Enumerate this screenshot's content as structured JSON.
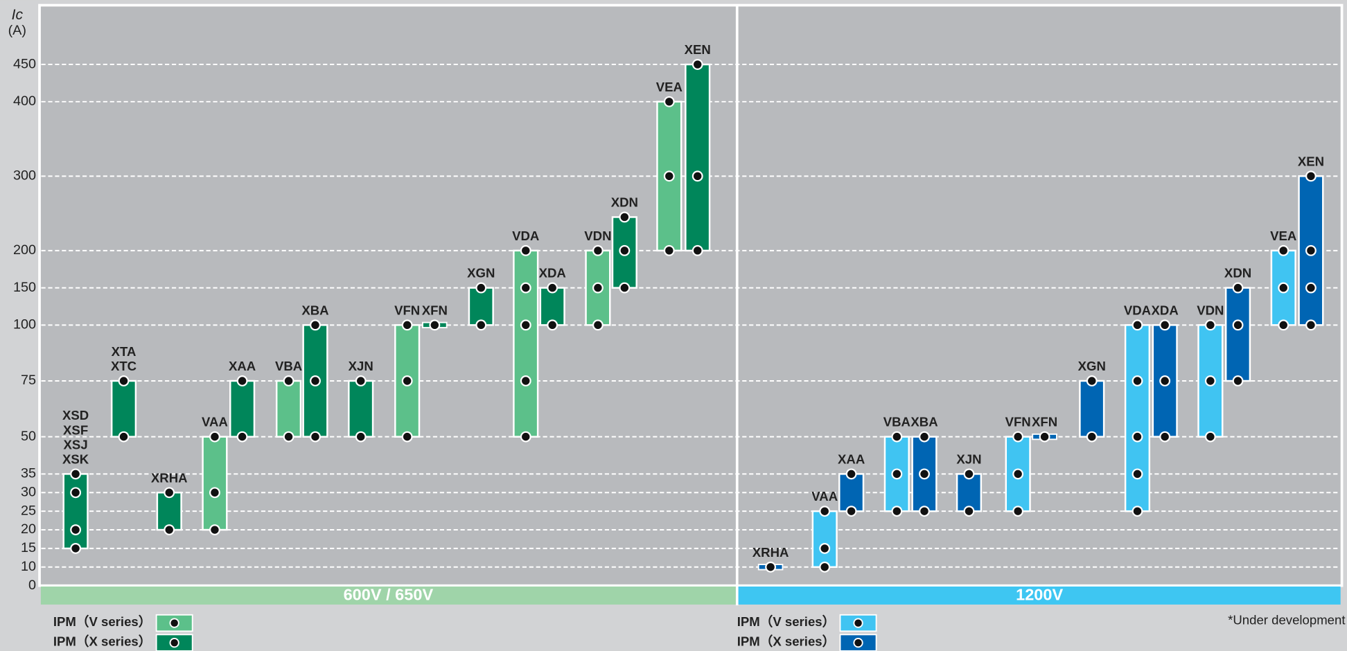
{
  "chart_data": {
    "type": "range",
    "y_label": "Ic",
    "y_unit": "(A)",
    "ylim": [
      0,
      450
    ],
    "yticks": [
      0,
      10,
      15,
      20,
      25,
      30,
      35,
      50,
      75,
      100,
      150,
      200,
      300,
      400,
      450
    ],
    "grid": true,
    "note": "*Under development",
    "groups": [
      {
        "label": "600V / 650V",
        "color": "#9fd4a9",
        "series": [
          {
            "name": "IPM（V series）",
            "color": "#5cc08a",
            "products": [
              {
                "names": [
                  "VAA"
                ],
                "values": [
                  20,
                  30,
                  50
                ]
              },
              {
                "names": [
                  "VBA"
                ],
                "values": [
                  50,
                  75
                ]
              },
              {
                "names": [
                  "VFN"
                ],
                "values": [
                  50,
                  75,
                  100
                ]
              },
              {
                "names": [
                  "VDA"
                ],
                "values": [
                  50,
                  75,
                  100,
                  150,
                  200
                ]
              },
              {
                "names": [
                  "VDN"
                ],
                "values": [
                  100,
                  150,
                  200
                ]
              },
              {
                "names": [
                  "VEA"
                ],
                "values": [
                  200,
                  300,
                  400
                ]
              }
            ]
          },
          {
            "name": "IPM（X series）",
            "color": "#00865a",
            "products": [
              {
                "names": [
                  "XSD",
                  "XSF",
                  "XSJ",
                  "XSK"
                ],
                "values": [
                  15,
                  20,
                  30,
                  35
                ]
              },
              {
                "names": [
                  "XTA",
                  "XTC"
                ],
                "values": [
                  50,
                  75
                ]
              },
              {
                "names": [
                  "XRHA"
                ],
                "values": [
                  20,
                  30
                ]
              },
              {
                "names": [
                  "XAA"
                ],
                "values": [
                  50,
                  75
                ]
              },
              {
                "names": [
                  "XBA"
                ],
                "values": [
                  50,
                  75,
                  100
                ]
              },
              {
                "names": [
                  "XJN"
                ],
                "values": [
                  50,
                  75
                ]
              },
              {
                "names": [
                  "XFN"
                ],
                "values": [
                  100
                ]
              },
              {
                "names": [
                  "XGN"
                ],
                "values": [
                  100,
                  150
                ]
              },
              {
                "names": [
                  "XDA"
                ],
                "values": [
                  100,
                  150
                ]
              },
              {
                "names": [
                  "XDN"
                ],
                "values": [
                  150,
                  200,
                  245
                ]
              },
              {
                "names": [
                  "XEN"
                ],
                "values": [
                  200,
                  300,
                  450
                ]
              }
            ]
          }
        ]
      },
      {
        "label": "1200V",
        "color": "#3ec6f2",
        "series": [
          {
            "name": "IPM（V series）",
            "color": "#40c4f2",
            "products": [
              {
                "names": [
                  "VAA"
                ],
                "values": [
                  10,
                  15,
                  25
                ]
              },
              {
                "names": [
                  "VBA"
                ],
                "values": [
                  25,
                  35,
                  50
                ]
              },
              {
                "names": [
                  "VFN"
                ],
                "values": [
                  25,
                  35,
                  50
                ]
              },
              {
                "names": [
                  "VDA"
                ],
                "values": [
                  25,
                  35,
                  50,
                  75,
                  100
                ]
              },
              {
                "names": [
                  "VDN"
                ],
                "values": [
                  50,
                  75,
                  100
                ]
              },
              {
                "names": [
                  "VEA"
                ],
                "values": [
                  100,
                  150,
                  200
                ]
              }
            ]
          },
          {
            "name": "IPM（X series）",
            "color": "#0065b3",
            "products": [
              {
                "names": [
                  "XRHA"
                ],
                "values": [
                  10
                ]
              },
              {
                "names": [
                  "XAA"
                ],
                "values": [
                  25,
                  35
                ]
              },
              {
                "names": [
                  "XBA"
                ],
                "values": [
                  25,
                  35,
                  50
                ]
              },
              {
                "names": [
                  "XJN"
                ],
                "values": [
                  25,
                  35
                ]
              },
              {
                "names": [
                  "XFN"
                ],
                "values": [
                  50
                ]
              },
              {
                "names": [
                  "XGN"
                ],
                "values": [
                  50,
                  75
                ]
              },
              {
                "names": [
                  "XDA"
                ],
                "values": [
                  50,
                  75,
                  100
                ]
              },
              {
                "names": [
                  "XDN"
                ],
                "values": [
                  75,
                  100,
                  150
                ]
              },
              {
                "names": [
                  "XEN"
                ],
                "values": [
                  100,
                  150,
                  200,
                  300
                ]
              }
            ]
          }
        ]
      }
    ]
  }
}
